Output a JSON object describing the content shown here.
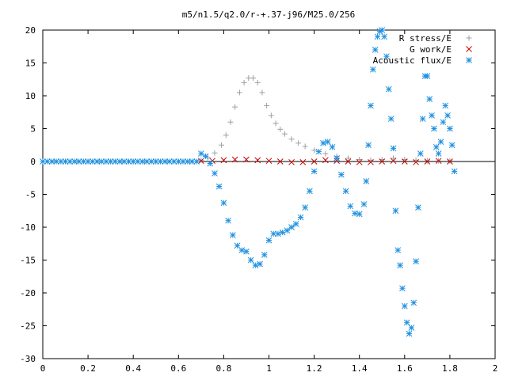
{
  "chart_data": {
    "type": "scatter",
    "title": "m5/n1.5/q2.0/r-+.37-j96/M25.0/256",
    "xlabel": "",
    "ylabel": "",
    "xlim": [
      0,
      2
    ],
    "ylim": [
      -30,
      20
    ],
    "xticks": [
      0,
      0.2,
      0.4,
      0.6,
      0.8,
      1,
      1.2,
      1.4,
      1.6,
      1.8,
      2
    ],
    "xtick_labels": [
      "0",
      "0.2",
      "0.4",
      "0.6",
      "0.8",
      "1",
      "1.2",
      "1.4",
      "1.6",
      "1.8",
      "2"
    ],
    "yticks": [
      -30,
      -25,
      -20,
      -15,
      -10,
      -5,
      0,
      5,
      10,
      15,
      20
    ],
    "ytick_labels": [
      "-30",
      "-25",
      "-20",
      "-15",
      "-10",
      "-5",
      "0",
      "5",
      "10",
      "15",
      "20"
    ],
    "legend_position": "top-right",
    "grid": false,
    "series": [
      {
        "name": "R stress/E",
        "marker": "plus",
        "color": "#a0a0a0",
        "x": [
          0.0,
          0.05,
          0.1,
          0.15,
          0.2,
          0.25,
          0.3,
          0.35,
          0.4,
          0.45,
          0.5,
          0.55,
          0.6,
          0.65,
          0.7,
          0.73,
          0.76,
          0.79,
          0.81,
          0.83,
          0.85,
          0.87,
          0.89,
          0.91,
          0.93,
          0.95,
          0.97,
          0.99,
          1.01,
          1.03,
          1.05,
          1.07,
          1.1,
          1.13,
          1.16,
          1.2,
          1.25,
          1.3,
          1.35,
          1.4,
          1.45,
          1.5,
          1.55,
          1.6,
          1.65,
          1.7,
          1.75,
          1.8
        ],
        "y": [
          0,
          0,
          0,
          0,
          0,
          0,
          0,
          0,
          0,
          0,
          0,
          0,
          0,
          0,
          0.2,
          0.6,
          1.3,
          2.5,
          4.0,
          6.0,
          8.3,
          10.5,
          12.0,
          12.7,
          12.7,
          12.0,
          10.5,
          8.5,
          7.0,
          5.8,
          4.9,
          4.2,
          3.4,
          2.8,
          2.3,
          1.7,
          1.2,
          0.8,
          0.5,
          0.3,
          0.2,
          0.3,
          0.5,
          0.3,
          0.2,
          0.1,
          0.1,
          0.1
        ]
      },
      {
        "name": "G work/E",
        "marker": "cross",
        "color": "#cc0000",
        "x": [
          0.7,
          0.75,
          0.8,
          0.85,
          0.9,
          0.95,
          1.0,
          1.05,
          1.1,
          1.15,
          1.2,
          1.25,
          1.3,
          1.35,
          1.4,
          1.45,
          1.5,
          1.55,
          1.6,
          1.65,
          1.7,
          1.75,
          1.8
        ],
        "y": [
          0.1,
          0.1,
          0.2,
          0.3,
          0.3,
          0.2,
          0.1,
          0,
          -0.1,
          -0.1,
          0,
          0.2,
          0.1,
          0,
          -0.1,
          -0.1,
          0,
          0.1,
          0,
          -0.1,
          0,
          0.1,
          0
        ]
      },
      {
        "name": "Acoustic flux/E",
        "marker": "star",
        "color": "#1e90e0",
        "x": [
          0.0,
          0.02,
          0.04,
          0.06,
          0.08,
          0.1,
          0.12,
          0.14,
          0.16,
          0.18,
          0.2,
          0.22,
          0.24,
          0.26,
          0.28,
          0.3,
          0.32,
          0.34,
          0.36,
          0.38,
          0.4,
          0.42,
          0.44,
          0.46,
          0.48,
          0.5,
          0.52,
          0.54,
          0.56,
          0.58,
          0.6,
          0.62,
          0.64,
          0.66,
          0.68,
          0.7,
          0.72,
          0.74,
          0.76,
          0.78,
          0.8,
          0.82,
          0.84,
          0.86,
          0.88,
          0.9,
          0.92,
          0.94,
          0.96,
          0.98,
          1.0,
          1.02,
          1.04,
          1.06,
          1.08,
          1.1,
          1.12,
          1.14,
          1.16,
          1.18,
          1.2,
          1.22,
          1.24,
          1.26,
          1.28,
          1.3,
          1.32,
          1.34,
          1.36,
          1.38,
          1.4,
          1.42,
          1.43,
          1.44,
          1.45,
          1.46,
          1.47,
          1.48,
          1.49,
          1.5,
          1.51,
          1.52,
          1.53,
          1.54,
          1.55,
          1.56,
          1.57,
          1.58,
          1.59,
          1.6,
          1.61,
          1.62,
          1.63,
          1.64,
          1.65,
          1.66,
          1.67,
          1.68,
          1.69,
          1.7,
          1.71,
          1.72,
          1.73,
          1.74,
          1.75,
          1.76,
          1.77,
          1.78,
          1.79,
          1.8,
          1.81,
          1.82
        ],
        "y": [
          0,
          0,
          0,
          0,
          0,
          0,
          0,
          0,
          0,
          0,
          0,
          0,
          0,
          0,
          0,
          0,
          0,
          0,
          0,
          0,
          0,
          0,
          0,
          0,
          0,
          0,
          0,
          0,
          0,
          0,
          0,
          0,
          0,
          0,
          0,
          1.2,
          0.8,
          -0.3,
          -1.8,
          -3.8,
          -6.3,
          -9.0,
          -11.2,
          -12.8,
          -13.5,
          -13.7,
          -15.0,
          -15.8,
          -15.6,
          -14.2,
          -12.0,
          -11.0,
          -11.0,
          -10.8,
          -10.5,
          -10.0,
          -9.5,
          -8.5,
          -7.0,
          -4.5,
          -1.5,
          1.5,
          2.8,
          3.0,
          2.2,
          0.5,
          -2.0,
          -4.5,
          -6.8,
          -7.9,
          -8.0,
          -6.5,
          -3.0,
          2.5,
          8.5,
          14.0,
          17.0,
          19.0,
          19.8,
          20.0,
          19.0,
          16.0,
          11.0,
          6.5,
          2.0,
          -7.5,
          -13.5,
          -15.8,
          -19.3,
          -22.0,
          -24.5,
          -26.2,
          -25.3,
          -21.5,
          -15.2,
          -7.0,
          1.2,
          6.5,
          13.0,
          13.0,
          9.5,
          7.0,
          5.0,
          2.2,
          1.2,
          3.0,
          6.0,
          8.5,
          7.0,
          5.0,
          2.5,
          -1.5
        ]
      }
    ]
  }
}
